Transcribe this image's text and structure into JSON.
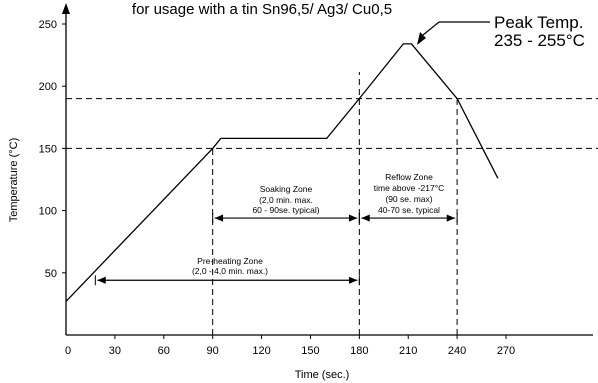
{
  "chart_data": {
    "type": "line",
    "title": "for usage with a tin Sn96,5/ Ag3/ Cu0,5",
    "xlabel": "Time (sec.)",
    "ylabel": "Temperature (°C)",
    "xlim": [
      0,
      300
    ],
    "ylim": [
      0,
      260
    ],
    "x_ticks": [
      "0",
      "30",
      "60",
      "90",
      "120",
      "150",
      "180",
      "210",
      "240",
      "270"
    ],
    "y_ticks": [
      "50",
      "100",
      "150",
      "200",
      "250"
    ],
    "series": [
      {
        "values": [
          {
            "x": 0,
            "y": 27
          },
          {
            "x": 90,
            "y": 150
          },
          {
            "x": 95,
            "y": 158
          },
          {
            "x": 160,
            "y": 158
          },
          {
            "x": 180,
            "y": 190
          },
          {
            "x": 207,
            "y": 234
          },
          {
            "x": 212,
            "y": 234
          },
          {
            "x": 240,
            "y": 190
          },
          {
            "x": 265,
            "y": 126
          }
        ]
      }
    ],
    "reference_lines": {
      "horizontal": [
        150,
        190
      ],
      "vertical": [
        90,
        180,
        240
      ]
    },
    "annotations": {
      "peak": {
        "line1": "Peak Temp.",
        "line2": "235 - 255°C"
      },
      "soaking": {
        "line1": "Soaking Zone",
        "line2": "(2,0 min. max.",
        "line3": "60 - 90se. typical)"
      },
      "reflow": {
        "line1": "Reflow Zone",
        "line2": "time above -217°C",
        "line3": "(90 se. max)",
        "line4": "40-70 se. typical"
      },
      "preheat": {
        "line1": "Pre-heating Zone",
        "line2": "(2,0 - 4,0 min. max.)"
      }
    },
    "spans": [
      {
        "from": 90,
        "to": 180,
        "y": 94
      },
      {
        "from": 180,
        "to": 240,
        "y": 94
      },
      {
        "from": 18,
        "to": 180,
        "y": 44
      }
    ],
    "grid": false
  }
}
